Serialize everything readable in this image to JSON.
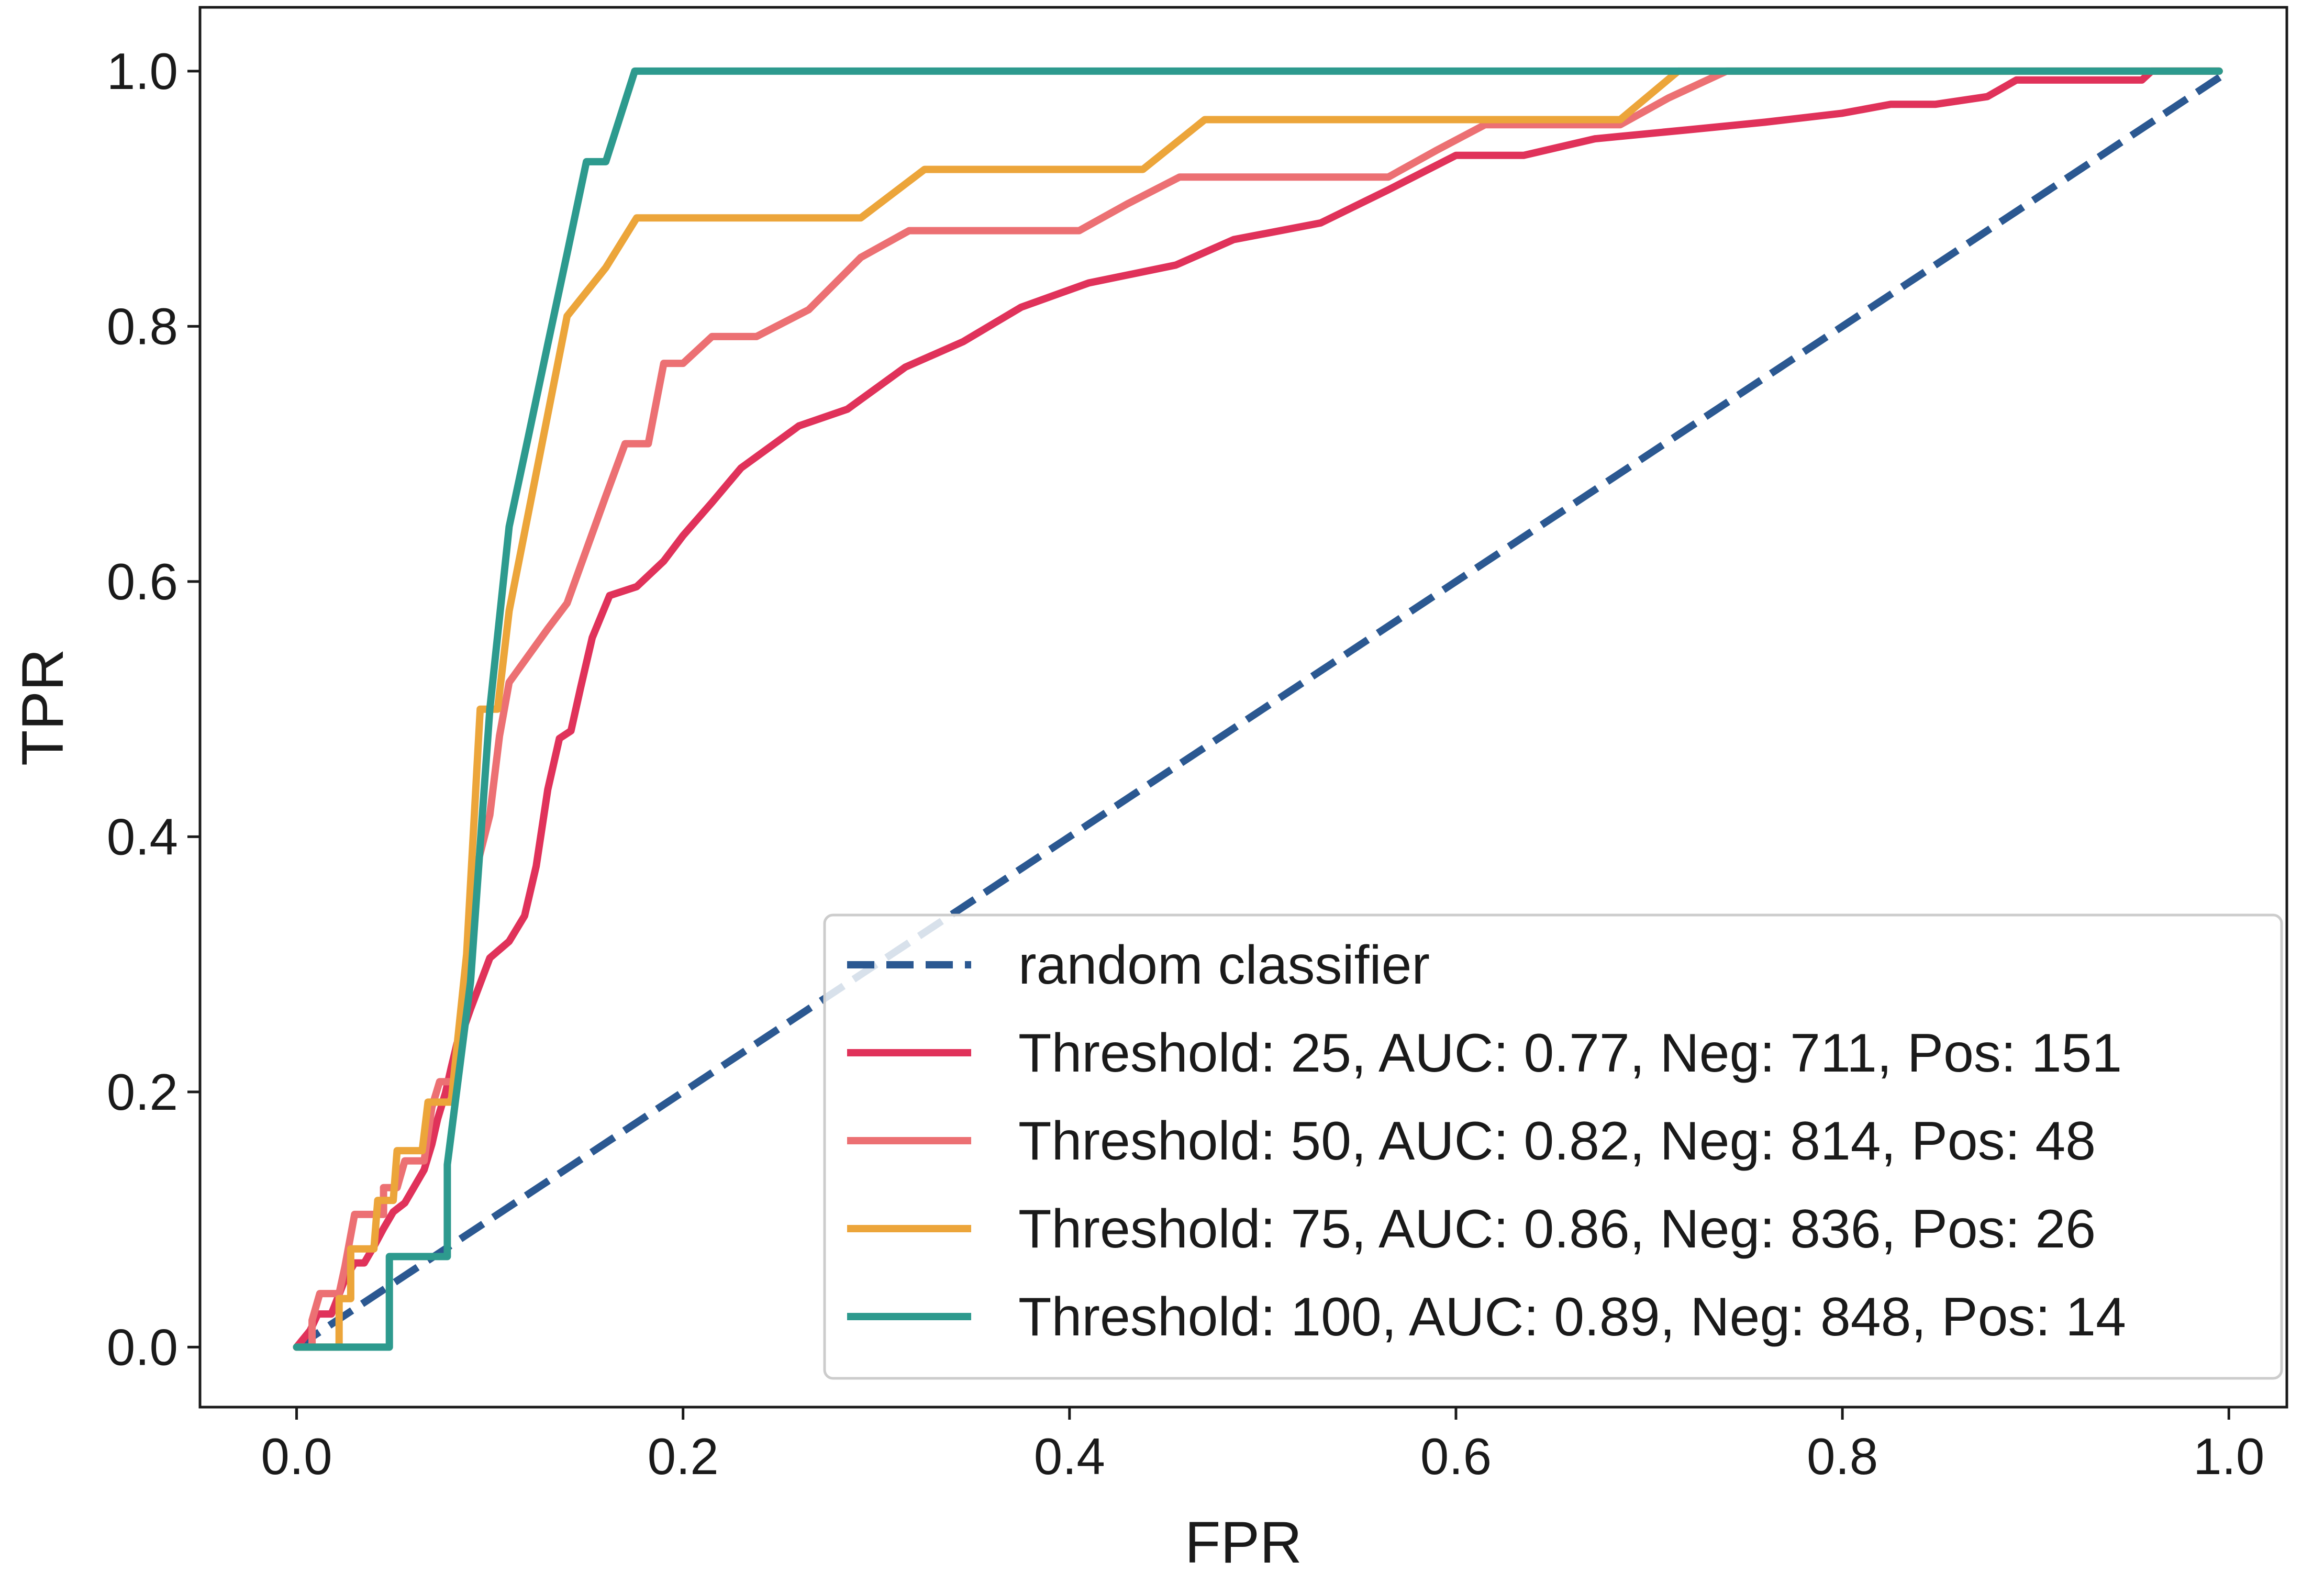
{
  "chart_data": {
    "type": "line",
    "title": "",
    "xlabel": "FPR",
    "ylabel": "TPR",
    "xlim": [
      -0.05,
      1.03
    ],
    "ylim": [
      -0.047,
      1.05
    ],
    "xticks": [
      "0.0",
      "0.2",
      "0.4",
      "0.6",
      "0.8",
      "1.0"
    ],
    "yticks": [
      "0.0",
      "0.2",
      "0.4",
      "0.6",
      "0.8",
      "1.0"
    ],
    "grid": false,
    "legend_position": "lower-right",
    "series": [
      {
        "name": "random classifier",
        "color": "#2b5891",
        "dashed": true,
        "points": [
          [
            0.0,
            0.0
          ],
          [
            1.0,
            1.0
          ]
        ]
      },
      {
        "name": "Threshold: 25, AUC: 0.77, Neg: 711, Pos: 151",
        "color": "#e0325a",
        "dashed": false,
        "points": [
          [
            0.0,
            0.0
          ],
          [
            0.007,
            0.013
          ],
          [
            0.011,
            0.026
          ],
          [
            0.018,
            0.026
          ],
          [
            0.025,
            0.053
          ],
          [
            0.03,
            0.066
          ],
          [
            0.035,
            0.066
          ],
          [
            0.04,
            0.079
          ],
          [
            0.045,
            0.093
          ],
          [
            0.05,
            0.106
          ],
          [
            0.056,
            0.113
          ],
          [
            0.061,
            0.126
          ],
          [
            0.066,
            0.139
          ],
          [
            0.07,
            0.159
          ],
          [
            0.073,
            0.179
          ],
          [
            0.077,
            0.199
          ],
          [
            0.08,
            0.219
          ],
          [
            0.083,
            0.238
          ],
          [
            0.087,
            0.252
          ],
          [
            0.09,
            0.265
          ],
          [
            0.095,
            0.285
          ],
          [
            0.1,
            0.305
          ],
          [
            0.11,
            0.318
          ],
          [
            0.118,
            0.338
          ],
          [
            0.124,
            0.377
          ],
          [
            0.13,
            0.437
          ],
          [
            0.136,
            0.477
          ],
          [
            0.142,
            0.483
          ],
          [
            0.147,
            0.517
          ],
          [
            0.153,
            0.556
          ],
          [
            0.162,
            0.589
          ],
          [
            0.176,
            0.596
          ],
          [
            0.19,
            0.616
          ],
          [
            0.2,
            0.636
          ],
          [
            0.215,
            0.662
          ],
          [
            0.23,
            0.689
          ],
          [
            0.26,
            0.722
          ],
          [
            0.285,
            0.735
          ],
          [
            0.315,
            0.768
          ],
          [
            0.345,
            0.788
          ],
          [
            0.375,
            0.815
          ],
          [
            0.41,
            0.834
          ],
          [
            0.455,
            0.848
          ],
          [
            0.485,
            0.868
          ],
          [
            0.53,
            0.881
          ],
          [
            0.565,
            0.907
          ],
          [
            0.6,
            0.934
          ],
          [
            0.635,
            0.934
          ],
          [
            0.672,
            0.947
          ],
          [
            0.72,
            0.954
          ],
          [
            0.76,
            0.96
          ],
          [
            0.8,
            0.967
          ],
          [
            0.825,
            0.974
          ],
          [
            0.848,
            0.974
          ],
          [
            0.875,
            0.98
          ],
          [
            0.89,
            0.993
          ],
          [
            0.955,
            0.993
          ],
          [
            0.96,
            1.0
          ],
          [
            0.995,
            1.0
          ]
        ]
      },
      {
        "name": "Threshold: 50, AUC: 0.82, Neg: 814, Pos: 48",
        "color": "#ec7073",
        "dashed": false,
        "points": [
          [
            0.0,
            0.0
          ],
          [
            0.008,
            0.0
          ],
          [
            0.008,
            0.021
          ],
          [
            0.012,
            0.042
          ],
          [
            0.022,
            0.042
          ],
          [
            0.025,
            0.063
          ],
          [
            0.03,
            0.104
          ],
          [
            0.045,
            0.104
          ],
          [
            0.045,
            0.125
          ],
          [
            0.052,
            0.125
          ],
          [
            0.056,
            0.146
          ],
          [
            0.066,
            0.146
          ],
          [
            0.07,
            0.188
          ],
          [
            0.074,
            0.208
          ],
          [
            0.082,
            0.208
          ],
          [
            0.085,
            0.25
          ],
          [
            0.09,
            0.292
          ],
          [
            0.093,
            0.375
          ],
          [
            0.1,
            0.417
          ],
          [
            0.105,
            0.479
          ],
          [
            0.11,
            0.521
          ],
          [
            0.12,
            0.542
          ],
          [
            0.13,
            0.563
          ],
          [
            0.14,
            0.583
          ],
          [
            0.15,
            0.625
          ],
          [
            0.16,
            0.667
          ],
          [
            0.17,
            0.708
          ],
          [
            0.182,
            0.708
          ],
          [
            0.19,
            0.771
          ],
          [
            0.2,
            0.771
          ],
          [
            0.215,
            0.792
          ],
          [
            0.238,
            0.792
          ],
          [
            0.265,
            0.813
          ],
          [
            0.292,
            0.854
          ],
          [
            0.317,
            0.875
          ],
          [
            0.405,
            0.875
          ],
          [
            0.43,
            0.896
          ],
          [
            0.457,
            0.917
          ],
          [
            0.565,
            0.917
          ],
          [
            0.59,
            0.938
          ],
          [
            0.615,
            0.958
          ],
          [
            0.685,
            0.958
          ],
          [
            0.71,
            0.979
          ],
          [
            0.74,
            1.0
          ],
          [
            0.995,
            1.0
          ]
        ]
      },
      {
        "name": "Threshold: 75, AUC: 0.86, Neg: 836, Pos: 26",
        "color": "#eca53a",
        "dashed": false,
        "points": [
          [
            0.0,
            0.0
          ],
          [
            0.022,
            0.0
          ],
          [
            0.022,
            0.038
          ],
          [
            0.028,
            0.038
          ],
          [
            0.028,
            0.077
          ],
          [
            0.04,
            0.077
          ],
          [
            0.042,
            0.115
          ],
          [
            0.05,
            0.115
          ],
          [
            0.052,
            0.154
          ],
          [
            0.065,
            0.154
          ],
          [
            0.068,
            0.192
          ],
          [
            0.08,
            0.192
          ],
          [
            0.088,
            0.308
          ],
          [
            0.095,
            0.5
          ],
          [
            0.104,
            0.5
          ],
          [
            0.11,
            0.577
          ],
          [
            0.12,
            0.654
          ],
          [
            0.13,
            0.731
          ],
          [
            0.14,
            0.808
          ],
          [
            0.16,
            0.846
          ],
          [
            0.176,
            0.885
          ],
          [
            0.292,
            0.885
          ],
          [
            0.325,
            0.923
          ],
          [
            0.438,
            0.923
          ],
          [
            0.47,
            0.962
          ],
          [
            0.685,
            0.962
          ],
          [
            0.715,
            1.0
          ],
          [
            0.995,
            1.0
          ]
        ]
      },
      {
        "name": "Threshold: 100, AUC: 0.89, Neg: 848, Pos: 14",
        "color": "#2d9a8e",
        "dashed": false,
        "points": [
          [
            0.0,
            0.0
          ],
          [
            0.048,
            0.0
          ],
          [
            0.048,
            0.071
          ],
          [
            0.078,
            0.071
          ],
          [
            0.078,
            0.143
          ],
          [
            0.09,
            0.286
          ],
          [
            0.1,
            0.5
          ],
          [
            0.11,
            0.643
          ],
          [
            0.12,
            0.714
          ],
          [
            0.13,
            0.786
          ],
          [
            0.14,
            0.857
          ],
          [
            0.15,
            0.929
          ],
          [
            0.16,
            0.929
          ],
          [
            0.175,
            1.0
          ],
          [
            0.995,
            1.0
          ]
        ]
      }
    ]
  }
}
